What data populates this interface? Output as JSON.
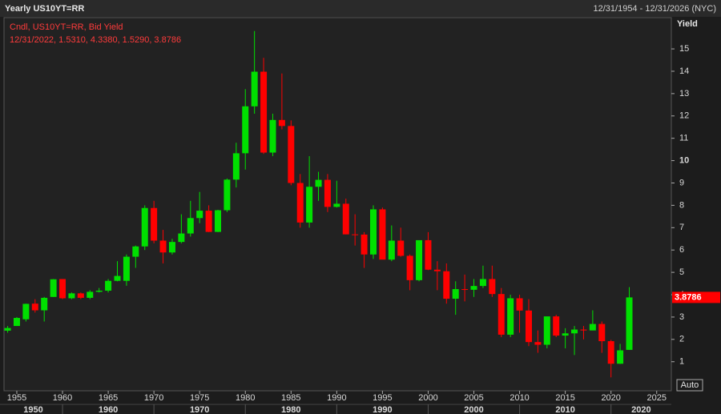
{
  "chart_data": {
    "type": "candlestick",
    "title": "Yearly US10YT=RR",
    "date_range": "12/31/1954 - 12/31/2026 (NYC)",
    "legend_title": "Cndl, US10YT=RR, Bid Yield",
    "legend_values": "12/31/2022, 1.5310, 4.3380, 1.5290, 3.8786",
    "y_label": "Yield",
    "scale_button": "Auto",
    "up_color": "#00e000",
    "down_color": "#ff0000",
    "grid": false,
    "x": [
      1954,
      1955,
      1956,
      1957,
      1958,
      1959,
      1960,
      1961,
      1962,
      1963,
      1964,
      1965,
      1966,
      1967,
      1968,
      1969,
      1970,
      1971,
      1972,
      1973,
      1974,
      1975,
      1976,
      1977,
      1978,
      1979,
      1980,
      1981,
      1982,
      1983,
      1984,
      1985,
      1986,
      1987,
      1988,
      1989,
      1990,
      1991,
      1992,
      1993,
      1994,
      1995,
      1996,
      1997,
      1998,
      1999,
      2000,
      2001,
      2002,
      2003,
      2004,
      2005,
      2006,
      2007,
      2008,
      2009,
      2010,
      2011,
      2012,
      2013,
      2014,
      2015,
      2016,
      2017,
      2018,
      2019,
      2020,
      2021,
      2022
    ],
    "open": [
      2.39,
      2.6,
      2.9,
      3.6,
      3.3,
      3.9,
      4.7,
      3.84,
      4.06,
      3.86,
      4.13,
      4.18,
      4.62,
      4.62,
      5.7,
      6.16,
      7.88,
      6.42,
      5.89,
      6.36,
      6.74,
      7.43,
      7.76,
      6.81,
      7.78,
      9.15,
      10.33,
      12.43,
      13.98,
      10.36,
      11.82,
      11.55,
      9.0,
      7.23,
      8.83,
      9.14,
      7.93,
      8.07,
      6.7,
      6.69,
      5.8,
      7.82,
      5.57,
      6.42,
      5.74,
      4.65,
      6.44,
      5.12,
      5.05,
      3.82,
      4.25,
      4.22,
      4.39,
      4.7,
      4.03,
      2.21,
      3.84,
      3.29,
      1.88,
      1.76,
      3.03,
      2.17,
      2.27,
      2.44,
      2.4,
      2.69,
      1.92,
      0.91,
      1.531
    ],
    "high": [
      2.6,
      3.0,
      3.6,
      3.8,
      3.9,
      4.7,
      4.7,
      4.1,
      4.1,
      4.2,
      4.3,
      4.7,
      5.5,
      5.8,
      6.2,
      8.0,
      8.2,
      6.9,
      6.5,
      7.6,
      8.2,
      8.6,
      8.0,
      7.8,
      9.2,
      10.8,
      13.2,
      15.8,
      14.6,
      12.1,
      13.9,
      11.8,
      9.4,
      10.2,
      9.5,
      9.4,
      9.1,
      8.3,
      7.6,
      6.8,
      8.0,
      7.9,
      7.1,
      7.0,
      5.8,
      6.4,
      6.8,
      5.5,
      5.4,
      4.6,
      4.9,
      4.7,
      5.3,
      5.3,
      4.3,
      4.0,
      4.0,
      3.8,
      2.4,
      3.0,
      3.1,
      2.5,
      2.6,
      2.6,
      3.3,
      2.8,
      1.98,
      1.8,
      4.338
    ],
    "low": [
      2.3,
      2.6,
      2.8,
      3.2,
      2.8,
      3.9,
      3.8,
      3.8,
      3.8,
      3.8,
      4.1,
      4.1,
      4.6,
      4.4,
      5.2,
      6.0,
      6.3,
      5.4,
      5.8,
      6.3,
      6.6,
      7.2,
      6.8,
      6.8,
      7.7,
      8.8,
      9.6,
      12.1,
      10.3,
      10.2,
      11.4,
      8.9,
      7.0,
      7.0,
      8.2,
      7.7,
      7.9,
      6.7,
      6.2,
      5.2,
      5.6,
      5.6,
      5.5,
      5.7,
      4.2,
      4.6,
      5.1,
      4.2,
      3.6,
      3.1,
      3.7,
      3.9,
      4.3,
      3.9,
      2.1,
      2.1,
      2.3,
      1.7,
      1.4,
      1.6,
      2.1,
      1.6,
      1.3,
      2.0,
      2.4,
      1.4,
      0.3,
      0.9,
      1.529
    ],
    "close": [
      2.51,
      2.96,
      3.59,
      3.3,
      3.86,
      4.69,
      3.84,
      4.06,
      3.86,
      4.13,
      4.18,
      4.62,
      4.84,
      5.7,
      6.16,
      7.88,
      6.42,
      5.89,
      6.36,
      6.74,
      7.43,
      7.76,
      6.81,
      7.78,
      9.15,
      10.33,
      12.43,
      13.98,
      10.36,
      11.82,
      11.55,
      9.0,
      7.23,
      8.83,
      9.14,
      7.93,
      8.07,
      6.7,
      6.69,
      5.8,
      7.82,
      5.57,
      6.42,
      5.74,
      4.65,
      6.44,
      5.12,
      5.05,
      3.82,
      4.25,
      4.22,
      4.39,
      4.7,
      4.03,
      2.21,
      3.84,
      3.29,
      1.88,
      1.76,
      3.03,
      2.17,
      2.27,
      2.44,
      2.4,
      2.69,
      1.92,
      0.91,
      1.51,
      3.8786
    ],
    "xlim": [
      1953.6,
      2026.6
    ],
    "xticks": [
      1955,
      1960,
      1965,
      1970,
      1975,
      1980,
      1985,
      1990,
      1995,
      2000,
      2005,
      2010,
      2015,
      2020,
      2025
    ],
    "x2ticks": [
      1950,
      1960,
      1970,
      1980,
      1990,
      2000,
      2010,
      2020
    ],
    "ylim": [
      -0.3,
      16.4
    ],
    "yticks": [
      1,
      2,
      3,
      4,
      5,
      6,
      7,
      8,
      9,
      10,
      11,
      12,
      13,
      14,
      15
    ]
  }
}
